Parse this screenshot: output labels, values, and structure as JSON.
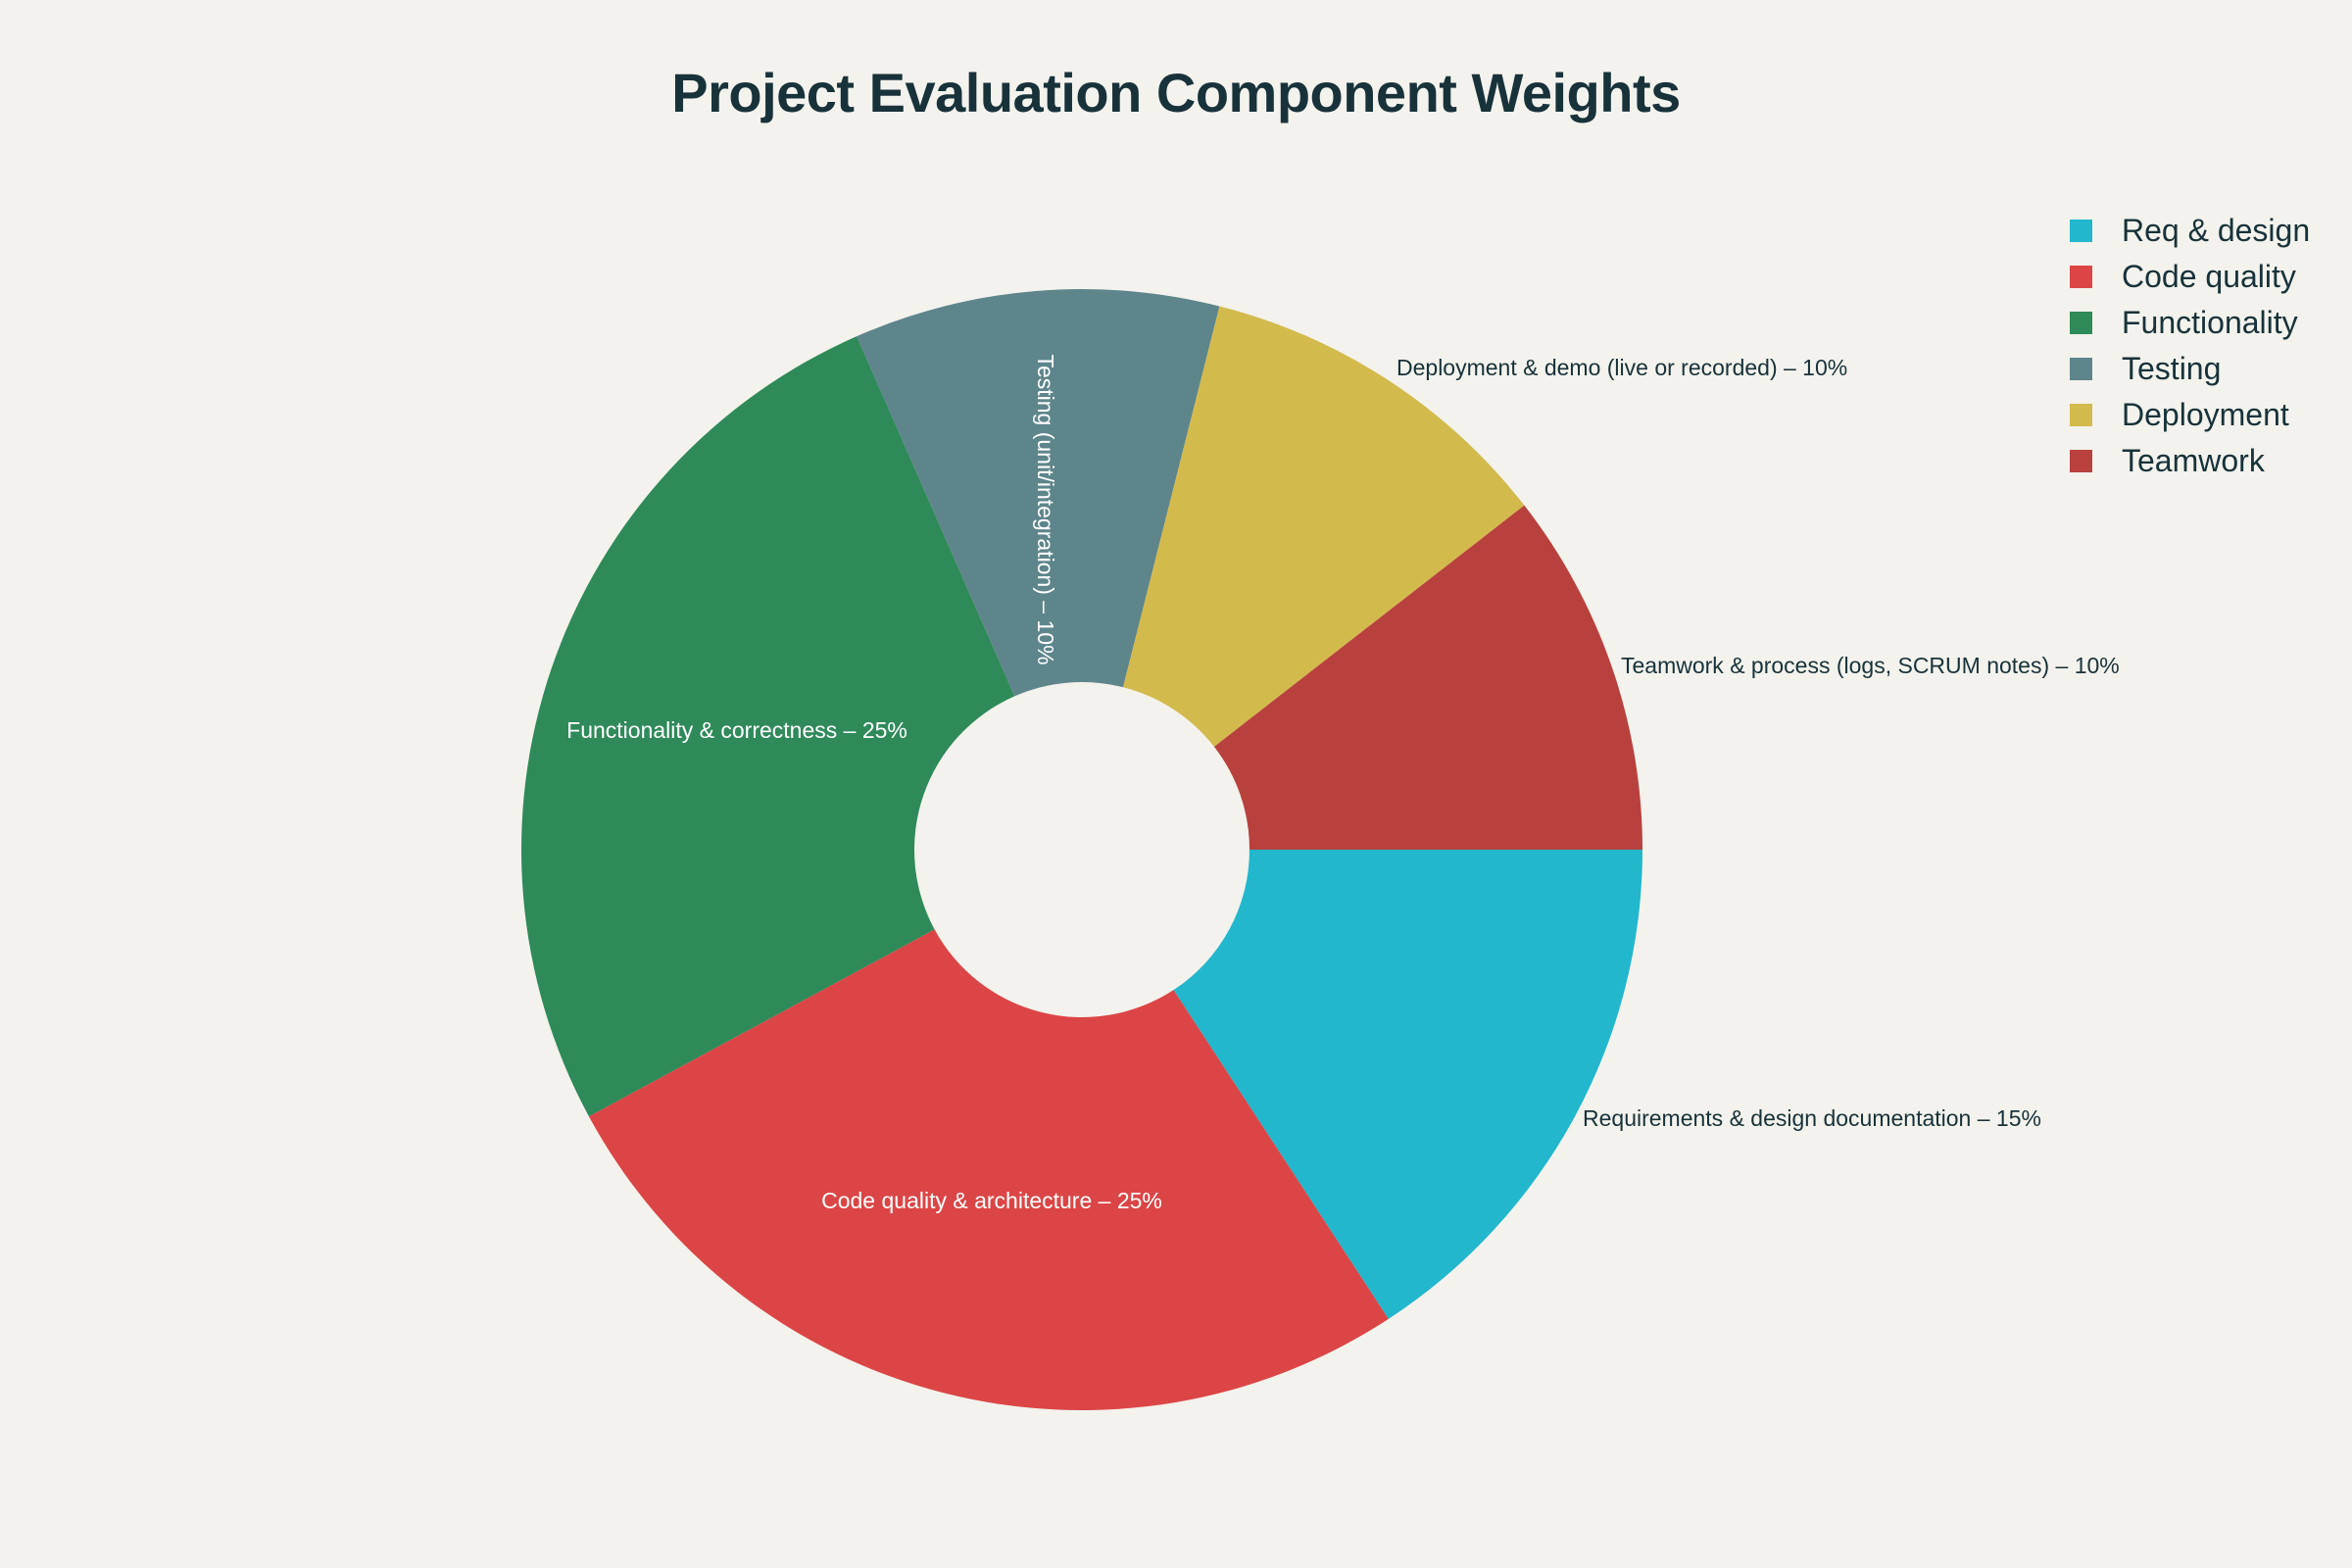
{
  "chart_data": {
    "type": "pie",
    "title": "Project Evaluation Component Weights",
    "hole": true,
    "legend_position": "top-right",
    "slices": [
      {
        "legend": "Req & design",
        "label": "Requirements & design documentation – 15%",
        "value": 15,
        "color": "#22b7cd",
        "text_color": "#18323a"
      },
      {
        "legend": "Code quality",
        "label": "Code quality & architecture – 25%",
        "value": 25,
        "color": "#dc4546",
        "text_color": "#ffffff"
      },
      {
        "legend": "Functionality",
        "label": "Functionality & correctness – 25%",
        "value": 25,
        "color": "#2f8a59",
        "text_color": "#ffffff"
      },
      {
        "legend": "Testing",
        "label": "Testing (unit/integration) – 10%",
        "value": 10,
        "color": "#5e858c",
        "text_color": "#ffffff"
      },
      {
        "legend": "Deployment",
        "label": "Deployment & demo (live or recorded) – 10%",
        "value": 10,
        "color": "#d3ba4d",
        "text_color": "#18323a"
      },
      {
        "legend": "Teamwork",
        "label": "Teamwork & process (logs, SCRUM notes) – 10%",
        "value": 10,
        "color": "#b8413e",
        "text_color": "#18323a"
      }
    ]
  }
}
